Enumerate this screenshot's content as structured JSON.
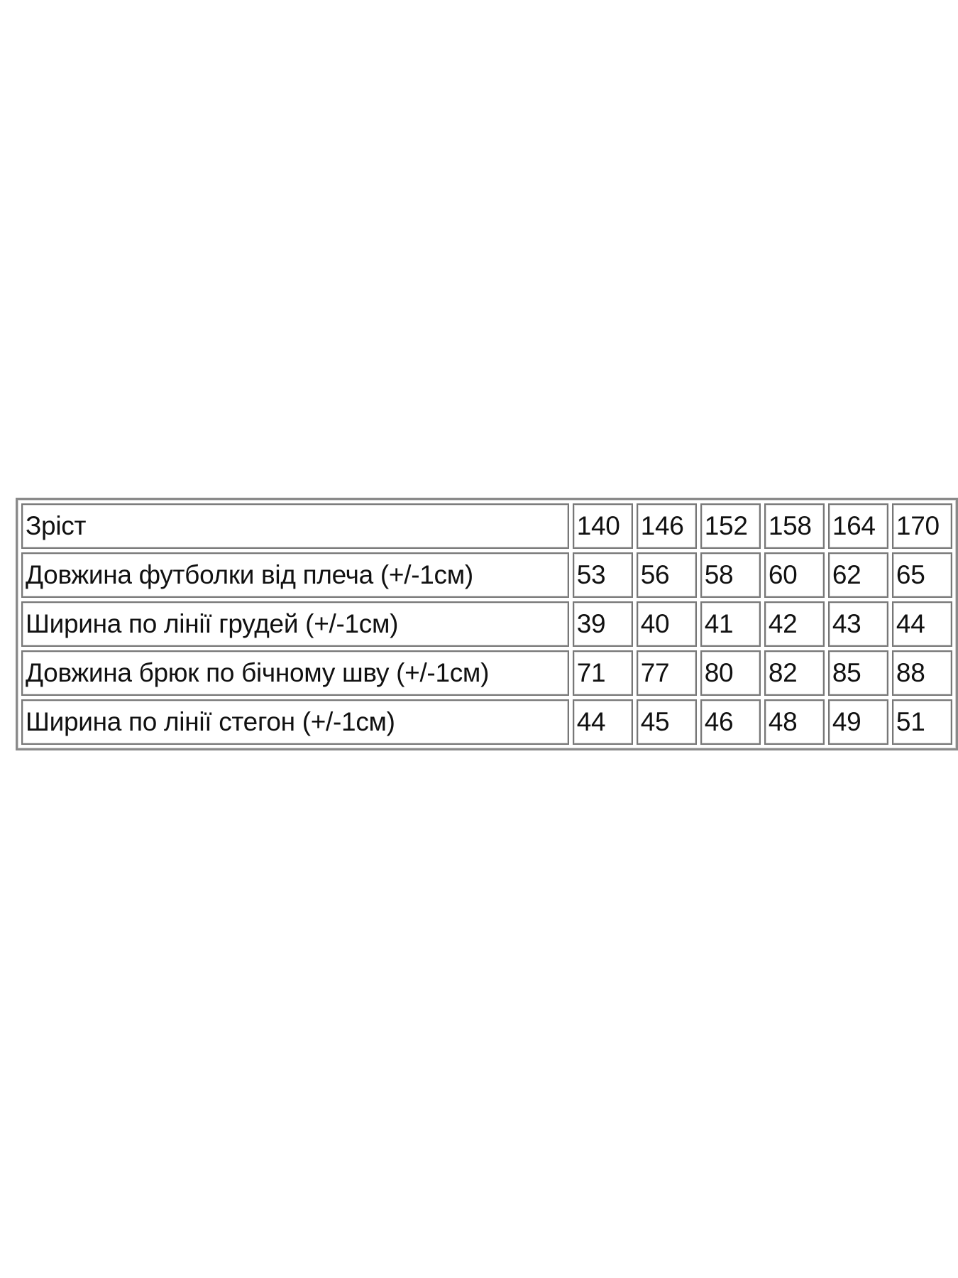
{
  "size_table": {
    "header": {
      "label": "Зріст",
      "values": [
        "140",
        "146",
        "152",
        "158",
        "164",
        "170"
      ]
    },
    "rows": [
      {
        "label": "Довжина футболки від плеча (+/-1см)",
        "values": [
          "53",
          "56",
          "58",
          "60",
          "62",
          "65"
        ]
      },
      {
        "label": "Ширина по лінії грудей (+/-1см)",
        "values": [
          "39",
          "40",
          "41",
          "42",
          "43",
          "44"
        ]
      },
      {
        "label": "Довжина брюк по бічному шву (+/-1см)",
        "values": [
          "71",
          "77",
          "80",
          "82",
          "85",
          "88"
        ]
      },
      {
        "label": "Ширина по лінії стегон (+/-1см)",
        "values": [
          "44",
          "45",
          "46",
          "48",
          "49",
          "51"
        ]
      }
    ]
  }
}
